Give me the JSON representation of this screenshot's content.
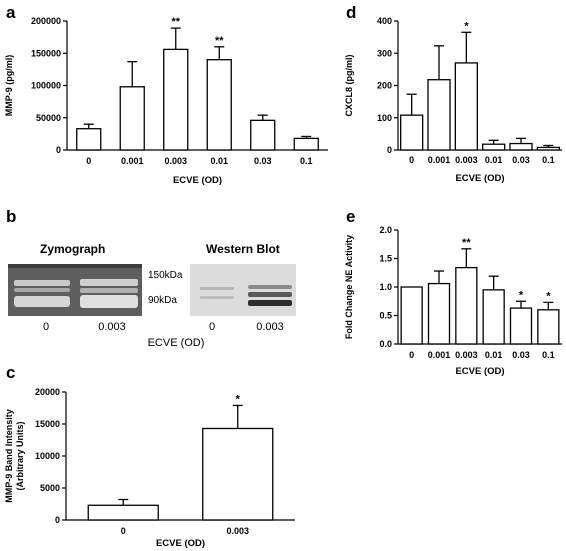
{
  "chart_data": [
    {
      "id": "a",
      "type": "bar",
      "panel_label": "a",
      "ylabel": "MMP-9 (pg/ml)",
      "xlabel": "ECVE (OD)",
      "categories": [
        "0",
        "0.001",
        "0.003",
        "0.01",
        "0.03",
        "0.1"
      ],
      "values": [
        33000,
        98000,
        156000,
        140000,
        46000,
        18000
      ],
      "errors": [
        7000,
        39000,
        33000,
        20000,
        8000,
        3000
      ],
      "significance": [
        "",
        "",
        "**",
        "**",
        "",
        ""
      ],
      "ylim": [
        0,
        200000
      ],
      "yticks": [
        "0",
        "50000",
        "100000",
        "150000",
        "200000"
      ]
    },
    {
      "id": "d",
      "type": "bar",
      "panel_label": "d",
      "ylabel": "CXCL8 (pg/ml)",
      "xlabel": "ECVE (OD)",
      "categories": [
        "0",
        "0.001",
        "0.003",
        "0.01",
        "0.03",
        "0.1"
      ],
      "values": [
        108,
        218,
        270,
        18,
        20,
        8
      ],
      "errors": [
        65,
        105,
        95,
        12,
        16,
        6
      ],
      "significance": [
        "",
        "",
        "*",
        "",
        "",
        ""
      ],
      "ylim": [
        0,
        400
      ],
      "yticks": [
        "0",
        "100",
        "200",
        "300",
        "400"
      ]
    },
    {
      "id": "e",
      "type": "bar",
      "panel_label": "e",
      "ylabel": "Fold Change NE Activity",
      "xlabel": "ECVE (OD)",
      "categories": [
        "0",
        "0.001",
        "0.003",
        "0.01",
        "0.03",
        "0.1"
      ],
      "values": [
        1.0,
        1.06,
        1.34,
        0.95,
        0.63,
        0.6
      ],
      "errors": [
        0.0,
        0.22,
        0.33,
        0.24,
        0.12,
        0.13
      ],
      "significance": [
        "",
        "",
        "**",
        "",
        "*",
        "*"
      ],
      "ylim": [
        0,
        2.0
      ],
      "yticks": [
        "0.0",
        "0.5",
        "1.0",
        "1.5",
        "2.0"
      ]
    },
    {
      "id": "c",
      "type": "bar",
      "panel_label": "c",
      "ylabel": "MMP-9 Band Intensity (Arbitrary Units)",
      "ylabel_lines": [
        "MMP-9 Band Intensity",
        "(Arbitrary Units)"
      ],
      "xlabel": "ECVE (OD)",
      "categories": [
        "0",
        "0.003"
      ],
      "values": [
        2300,
        14300
      ],
      "errors": [
        900,
        3600
      ],
      "significance": [
        "",
        "*"
      ],
      "ylim": [
        0,
        20000
      ],
      "yticks": [
        "0",
        "5000",
        "10000",
        "15000",
        "20000"
      ]
    }
  ],
  "blots": {
    "panel_label": "b",
    "zymograph_title": "Zymograph",
    "western_title": "Western Blot",
    "marker_150": "150kDa",
    "marker_90": "90kDa",
    "lane_0": "0",
    "lane_003": "0.003",
    "xlabel": "ECVE (OD)"
  }
}
